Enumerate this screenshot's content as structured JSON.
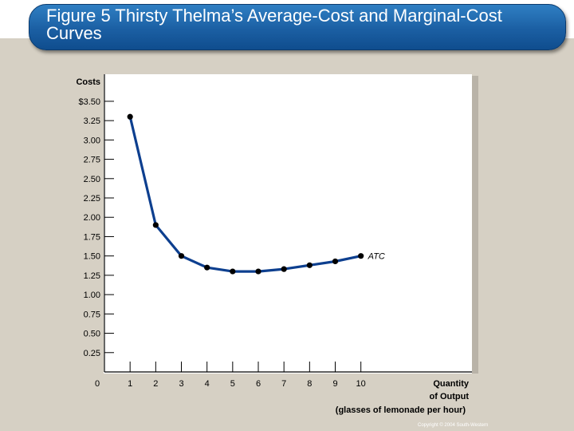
{
  "slide": {
    "title": "Figure 5 Thirsty Thelma’s Average-Cost and Marginal-Cost Curves",
    "copyright": "Copyright © 2004  South-Western"
  },
  "colors": {
    "background": "#d6d0c4",
    "title_bar": "#1b5fa3",
    "curve": "#0d3f8f",
    "plot_bg": "#ffffff"
  },
  "chart_data": {
    "type": "line",
    "title": "",
    "ylabel": "Costs",
    "xlabel_lines": [
      "Quantity",
      "of Output",
      "(glasses of lemonade per hour)"
    ],
    "origin_label": "0",
    "x_ticks": [
      "1",
      "2",
      "3",
      "4",
      "5",
      "6",
      "7",
      "8",
      "9",
      "10"
    ],
    "y_ticks": [
      {
        "value": 0.25,
        "label": "0.25"
      },
      {
        "value": 0.5,
        "label": "0.50"
      },
      {
        "value": 0.75,
        "label": "0.75"
      },
      {
        "value": 1.0,
        "label": "1.00"
      },
      {
        "value": 1.25,
        "label": "1.25"
      },
      {
        "value": 1.5,
        "label": "1.50"
      },
      {
        "value": 1.75,
        "label": "1.75"
      },
      {
        "value": 2.0,
        "label": "2.00"
      },
      {
        "value": 2.25,
        "label": "2.25"
      },
      {
        "value": 2.5,
        "label": "2.50"
      },
      {
        "value": 2.75,
        "label": "2.75"
      },
      {
        "value": 3.0,
        "label": "3.00"
      },
      {
        "value": 3.25,
        "label": "3.25"
      },
      {
        "value": 3.5,
        "label": "$3.50"
      }
    ],
    "xlim": [
      0,
      14.3
    ],
    "ylim": [
      0,
      3.85
    ],
    "grid": false,
    "series": [
      {
        "name": "ATC",
        "x": [
          1,
          2,
          3,
          4,
          5,
          6,
          7,
          8,
          9,
          10
        ],
        "y": [
          3.3,
          1.9,
          1.5,
          1.35,
          1.3,
          1.3,
          1.33,
          1.38,
          1.43,
          1.5
        ]
      }
    ]
  }
}
